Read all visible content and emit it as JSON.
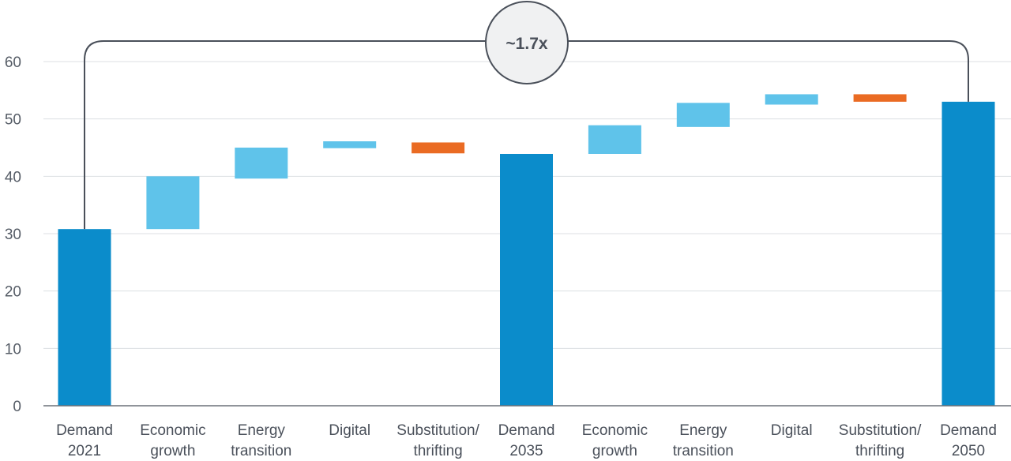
{
  "chart_data": {
    "type": "bar",
    "subtype": "waterfall",
    "categories": [
      [
        "Demand",
        "2021"
      ],
      [
        "Economic",
        "growth"
      ],
      [
        "Energy",
        "transition"
      ],
      [
        "Digital"
      ],
      [
        "Substitution/",
        "thrifting"
      ],
      [
        "Demand",
        "2035"
      ],
      [
        "Economic",
        "growth"
      ],
      [
        "Energy",
        "transition"
      ],
      [
        "Digital"
      ],
      [
        "Substitution/",
        "thrifting"
      ],
      [
        "Demand",
        "2050"
      ]
    ],
    "bars": [
      {
        "kind": "total",
        "start": 0,
        "end": 30.8
      },
      {
        "kind": "increase",
        "start": 30.8,
        "end": 40.0
      },
      {
        "kind": "increase",
        "start": 39.6,
        "end": 45.0
      },
      {
        "kind": "increase",
        "start": 44.9,
        "end": 46.1
      },
      {
        "kind": "decrease",
        "start": 45.9,
        "end": 44.0
      },
      {
        "kind": "total",
        "start": 0,
        "end": 43.9
      },
      {
        "kind": "increase",
        "start": 43.9,
        "end": 48.9
      },
      {
        "kind": "increase",
        "start": 48.6,
        "end": 52.8
      },
      {
        "kind": "increase",
        "start": 52.5,
        "end": 54.3
      },
      {
        "kind": "decrease",
        "start": 54.3,
        "end": 53.0
      },
      {
        "kind": "total",
        "start": 0,
        "end": 53.0
      }
    ],
    "ylim": [
      0,
      65
    ],
    "yticks": [
      0,
      10,
      20,
      30,
      40,
      50,
      60
    ],
    "grid": true,
    "title": "",
    "xlabel": "",
    "ylabel": "",
    "annotation": {
      "text": "~1.7x",
      "from_category": 0,
      "to_category": 10
    },
    "colors": {
      "total": "#0b8ccb",
      "increase": "#5fc3ea",
      "decrease": "#ea6b23",
      "grid": "#dcdfe3",
      "axis": "#6b7079",
      "bracket": "#4a505a",
      "annotation_fill": "#f0f1f2"
    }
  }
}
